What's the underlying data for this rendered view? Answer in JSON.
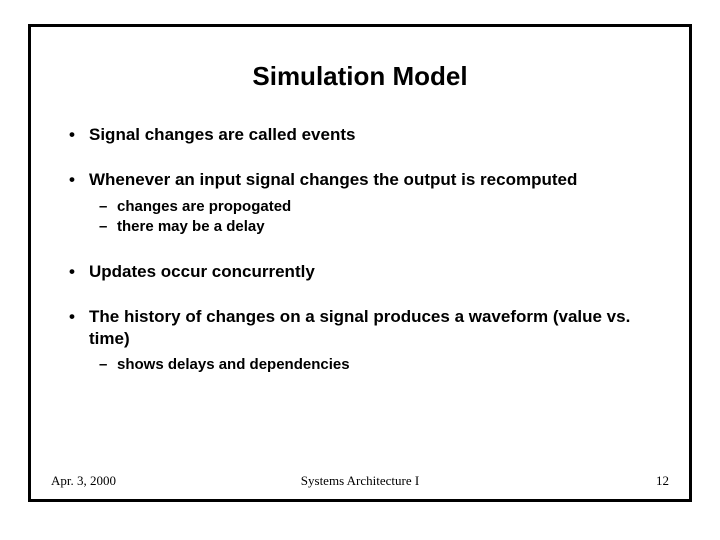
{
  "title": "Simulation Model",
  "bullets": [
    {
      "text": "Signal changes are called events",
      "subs": []
    },
    {
      "text": "Whenever an input signal changes the output is recomputed",
      "subs": [
        "changes are propogated",
        "there may be a delay"
      ]
    },
    {
      "text": "Updates occur concurrently",
      "subs": []
    },
    {
      "text": "The history of changes on a signal produces a waveform (value vs. time)",
      "subs": [
        "shows delays and dependencies"
      ]
    }
  ],
  "footer": {
    "date": "Apr. 3, 2000",
    "course": "Systems Architecture I",
    "page": "12"
  },
  "style": {
    "frame_border_color": "#000000",
    "background_color": "#ffffff",
    "title_fontsize": 26,
    "bullet_fontsize": 17,
    "sub_fontsize": 15,
    "footer_fontsize": 13
  }
}
